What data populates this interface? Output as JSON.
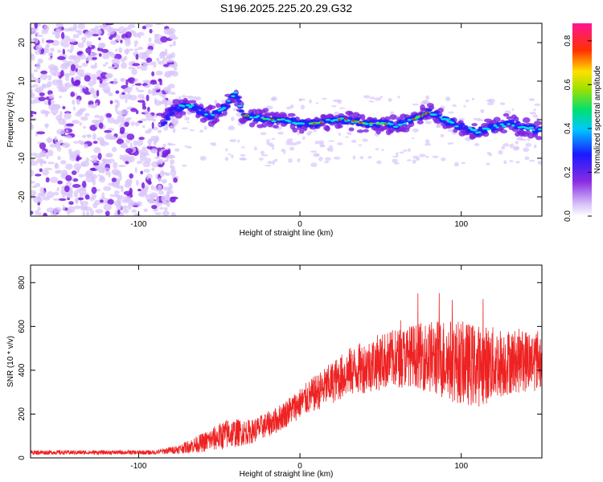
{
  "title": "S196.2025.225.20.29.G32",
  "colors": {
    "snr_line": "#ee2222",
    "track_high": "#ff2200",
    "track_mid": "#00e0e0",
    "track_low": "#2020ff",
    "noise_strong": "#7a1fe0",
    "noise_weak": "#d9c6fb"
  },
  "chart_data": [
    {
      "type": "heatmap",
      "name": "spectrogram",
      "xlabel": "Height of straight line (km)",
      "ylabel": "Frequency (Hz)",
      "xlim": [
        -167,
        150
      ],
      "ylim": [
        -25,
        25
      ],
      "xticks": [
        -100,
        0,
        100
      ],
      "xtick_labels": [
        "-100",
        "0",
        "100"
      ],
      "yticks": [
        -20,
        -10,
        0,
        10,
        20
      ],
      "ytick_labels": [
        "-20",
        "-10",
        "0",
        "10",
        "20"
      ],
      "colorbar": {
        "label": "Normalized spectral amplitude",
        "range": [
          0,
          0.88
        ],
        "ticks": [
          0.0,
          0.2,
          0.4,
          0.6,
          0.8
        ],
        "tick_labels": [
          "0.0",
          "0.2",
          "0.4",
          "0.6",
          "0.8"
        ],
        "colormap": "rainbow (white-violet-blue-cyan-green-yellow-red-pink)"
      },
      "noise_region_x": [
        -167,
        -83
      ],
      "track_start_x": -85,
      "track": [
        {
          "x": -85,
          "y": -1
        },
        {
          "x": -80,
          "y": 2
        },
        {
          "x": -75,
          "y": 3
        },
        {
          "x": -70,
          "y": 4
        },
        {
          "x": -65,
          "y": 3
        },
        {
          "x": -60,
          "y": 2
        },
        {
          "x": -55,
          "y": 1
        },
        {
          "x": -50,
          "y": 2
        },
        {
          "x": -45,
          "y": 4
        },
        {
          "x": -40,
          "y": 7
        },
        {
          "x": -35,
          "y": 1
        },
        {
          "x": -30,
          "y": 1
        },
        {
          "x": -20,
          "y": 0
        },
        {
          "x": -10,
          "y": 0
        },
        {
          "x": 0,
          "y": -1
        },
        {
          "x": 10,
          "y": -1
        },
        {
          "x": 20,
          "y": 0
        },
        {
          "x": 30,
          "y": 0
        },
        {
          "x": 40,
          "y": -1
        },
        {
          "x": 50,
          "y": -1
        },
        {
          "x": 60,
          "y": -1.5
        },
        {
          "x": 70,
          "y": 0
        },
        {
          "x": 80,
          "y": 2
        },
        {
          "x": 90,
          "y": 0
        },
        {
          "x": 100,
          "y": -2
        },
        {
          "x": 110,
          "y": -3
        },
        {
          "x": 120,
          "y": -2
        },
        {
          "x": 130,
          "y": -1
        },
        {
          "x": 140,
          "y": -2
        },
        {
          "x": 150,
          "y": -3
        }
      ]
    },
    {
      "type": "line",
      "name": "snr",
      "xlabel": "Height of straight line (km)",
      "ylabel": "SNR (10 * v/v)",
      "xlim": [
        -167,
        150
      ],
      "ylim": [
        0,
        880
      ],
      "xticks": [
        -100,
        0,
        100
      ],
      "xtick_labels": [
        "-100",
        "0",
        "100"
      ],
      "yticks": [
        0,
        200,
        400,
        600,
        800
      ],
      "ytick_labels": [
        "0",
        "200",
        "400",
        "600",
        "800"
      ],
      "envelope": [
        {
          "x": -167,
          "mean": 25,
          "spread": 10
        },
        {
          "x": -90,
          "mean": 25,
          "spread": 10
        },
        {
          "x": -75,
          "mean": 40,
          "spread": 20
        },
        {
          "x": -60,
          "mean": 70,
          "spread": 45
        },
        {
          "x": -45,
          "mean": 110,
          "spread": 70
        },
        {
          "x": -30,
          "mean": 120,
          "spread": 55
        },
        {
          "x": -15,
          "mean": 170,
          "spread": 60
        },
        {
          "x": 0,
          "mean": 250,
          "spread": 70
        },
        {
          "x": 15,
          "mean": 320,
          "spread": 90
        },
        {
          "x": 30,
          "mean": 390,
          "spread": 110
        },
        {
          "x": 50,
          "mean": 440,
          "spread": 130
        },
        {
          "x": 70,
          "mean": 470,
          "spread": 140
        },
        {
          "x": 90,
          "mean": 450,
          "spread": 190
        },
        {
          "x": 110,
          "mean": 420,
          "spread": 190
        },
        {
          "x": 130,
          "mean": 440,
          "spread": 150
        },
        {
          "x": 150,
          "mean": 450,
          "spread": 140
        }
      ]
    }
  ]
}
